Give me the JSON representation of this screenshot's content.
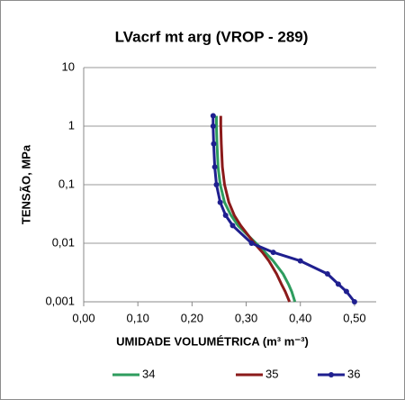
{
  "chart_data": {
    "type": "line",
    "title": "LVacrf mt arg  (VROP - 289)",
    "x_label": "UMIDADE VOLUMÉTRICA (m³ m⁻³)",
    "y_label": "TENSÃO, MPa",
    "xlim": [
      0,
      0.54
    ],
    "xticks": [
      {
        "value": 0,
        "label": "0,00"
      },
      {
        "value": 0.1,
        "label": "0,10"
      },
      {
        "value": 0.2,
        "label": "0,20"
      },
      {
        "value": 0.3,
        "label": "0,30"
      },
      {
        "value": 0.4,
        "label": "0,40"
      },
      {
        "value": 0.5,
        "label": "0,50"
      }
    ],
    "ylim": [
      0.001,
      10
    ],
    "yscale": "log",
    "yticks": [
      {
        "value": 0.001,
        "label": "0,001"
      },
      {
        "value": 0.01,
        "label": "0,01"
      },
      {
        "value": 0.1,
        "label": "0,1"
      },
      1,
      10
    ],
    "grid": true,
    "legend": "bottom",
    "series": [
      {
        "name": "34",
        "color": "#2e9c5e",
        "markers": false,
        "x": [
          0.245,
          0.245,
          0.246,
          0.248,
          0.252,
          0.26,
          0.272,
          0.285,
          0.318,
          0.335,
          0.35,
          0.368,
          0.378,
          0.384,
          0.39
        ],
        "values": [
          1.5,
          1,
          0.5,
          0.2,
          0.1,
          0.05,
          0.03,
          0.02,
          0.01,
          0.007,
          0.005,
          0.003,
          0.002,
          0.0015,
          0.001
        ]
      },
      {
        "name": "35",
        "color": "#8b1a1a",
        "markers": false,
        "x": [
          0.253,
          0.253,
          0.254,
          0.256,
          0.26,
          0.268,
          0.278,
          0.29,
          0.315,
          0.33,
          0.342,
          0.356,
          0.365,
          0.372,
          0.38
        ],
        "values": [
          1.5,
          1,
          0.5,
          0.2,
          0.1,
          0.05,
          0.03,
          0.02,
          0.01,
          0.007,
          0.005,
          0.003,
          0.002,
          0.0015,
          0.001
        ]
      },
      {
        "name": "36",
        "color": "#1f1f8f",
        "markers": true,
        "x": [
          0.239,
          0.239,
          0.24,
          0.242,
          0.245,
          0.252,
          0.262,
          0.275,
          0.31,
          0.35,
          0.4,
          0.45,
          0.47,
          0.485,
          0.5
        ],
        "values": [
          1.5,
          1,
          0.5,
          0.2,
          0.1,
          0.05,
          0.03,
          0.02,
          0.01,
          0.007,
          0.005,
          0.003,
          0.002,
          0.0015,
          0.001
        ]
      }
    ]
  }
}
